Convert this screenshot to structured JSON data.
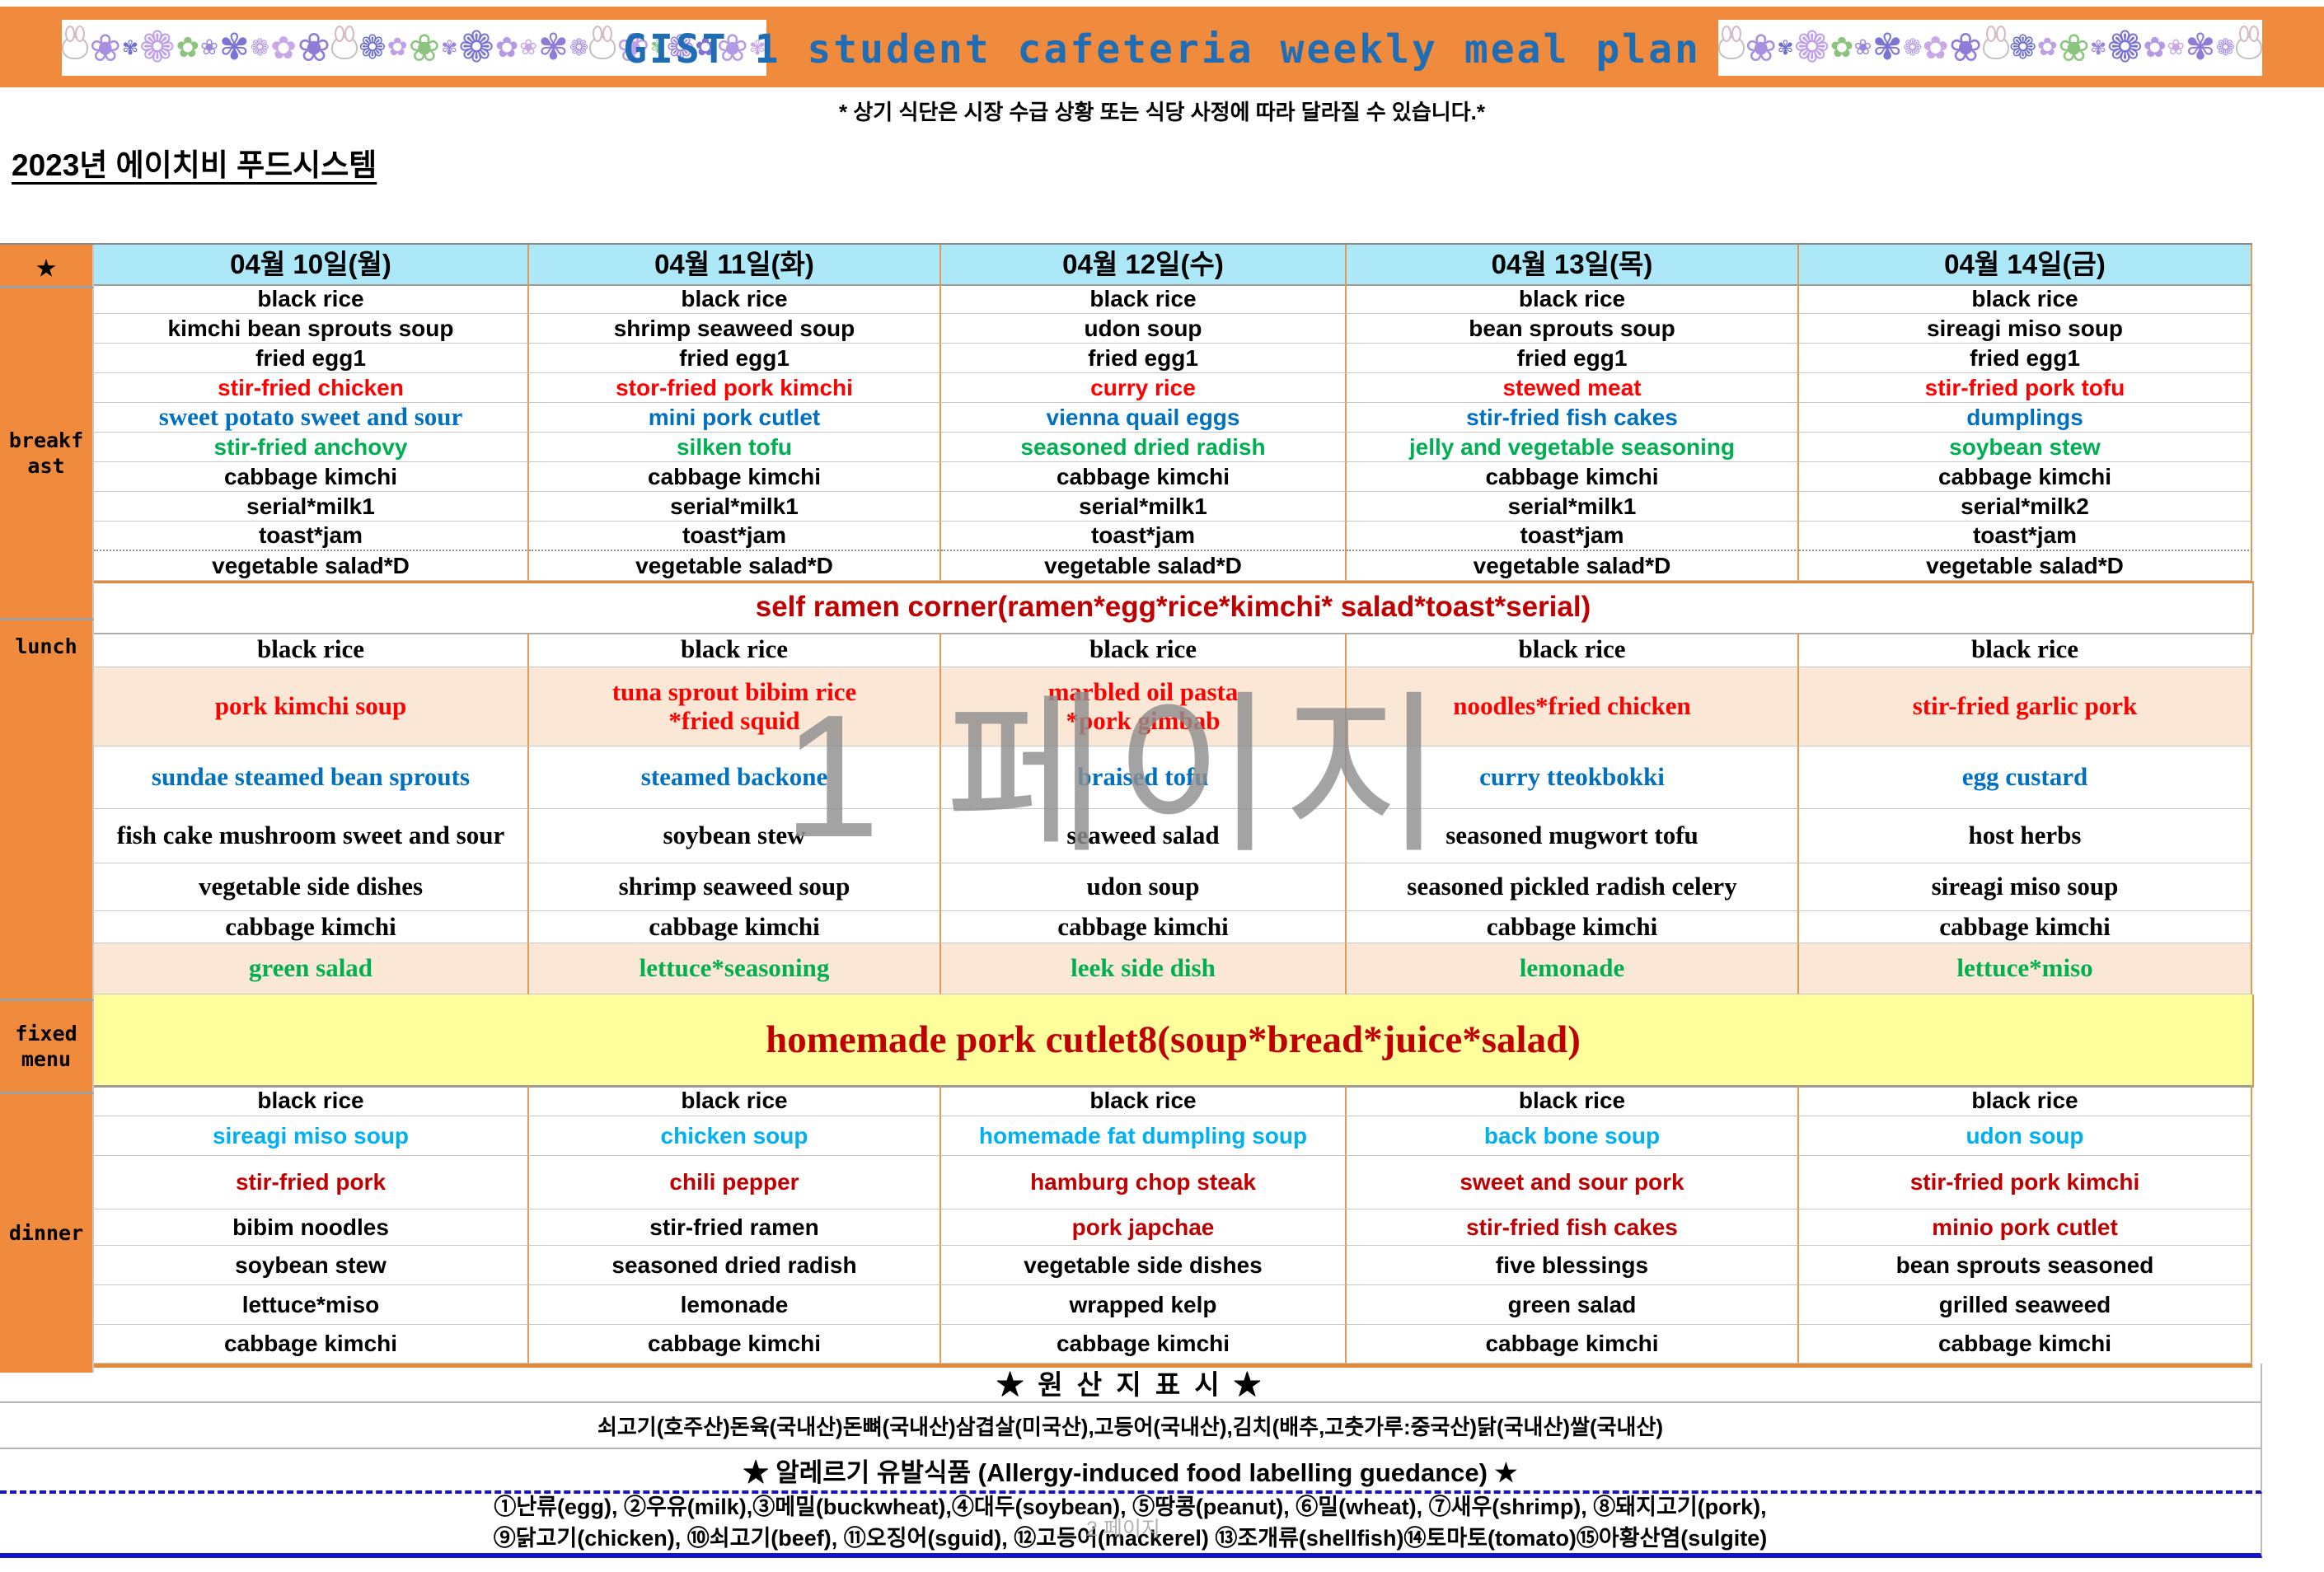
{
  "banner": {
    "title": "GIST 1 student cafeteria weekly meal plan",
    "title_color": "#1F6EB5",
    "bg_color": "#F08A3D",
    "left_decor_icon": "flower-strip",
    "right_decor_icon": "flower-strip",
    "bunny_icon": "bunny-face"
  },
  "notice": "* 상기 식단은 시장 수급 상황 또는 식당 사정에 따라 달라질 수 있습니다.*",
  "organization": "2023년 에이치비 푸드시스템",
  "watermarks": {
    "page_large": "1 페이지",
    "page_small": "2 페이지"
  },
  "palette": {
    "black": "#000000",
    "red": "#FF0000",
    "blue": "#0070C0",
    "green": "#00B050",
    "cyan": "#00B0F0",
    "darkred": "#C00000",
    "header_bg": "#ACE8F8",
    "sidebar_bg": "#F08A3D",
    "peach": "#FBE7D5",
    "yellow": "#FFFF9C",
    "footer_blue": "#1414CC"
  },
  "table": {
    "corner_star": "★",
    "days": [
      "04월 10일(월)",
      "04월 11일(화)",
      "04월 12일(수)",
      "04월 13일(목)",
      "04월 14일(금)"
    ],
    "sidebar": {
      "breakfast": "breakf\nast",
      "lunch": "lunch",
      "fixed": "fixed\nmenu",
      "dinner": "dinner"
    },
    "breakfast_rows": [
      {
        "color": "black",
        "cells": [
          "black rice",
          "black rice",
          "black rice",
          "black rice",
          "black rice"
        ]
      },
      {
        "color": "black",
        "cells": [
          "kimchi bean sprouts soup",
          "shrimp seaweed soup",
          "udon soup",
          "bean sprouts soup",
          "sireagi miso soup"
        ]
      },
      {
        "color": "black",
        "cells": [
          "fried egg1",
          "fried egg1",
          "fried egg1",
          "fried egg1",
          "fried egg1"
        ]
      },
      {
        "color": "red",
        "cells": [
          "stir-fried chicken",
          "stor-fried pork kimchi",
          "curry rice",
          "stewed meat",
          "stir-fried pork tofu"
        ]
      },
      {
        "color": "blue",
        "serif_cells": [
          0
        ],
        "cells": [
          "sweet potato sweet and sour",
          "mini pork cutlet",
          "vienna quail eggs",
          "stir-fried fish cakes",
          "dumplings"
        ]
      },
      {
        "color": "green",
        "cells": [
          "stir-fried anchovy",
          "silken tofu",
          "seasoned dried radish",
          "jelly and vegetable seasoning",
          "soybean stew"
        ]
      },
      {
        "color": "black",
        "cells": [
          "cabbage kimchi",
          "cabbage kimchi",
          "cabbage kimchi",
          "cabbage kimchi",
          "cabbage kimchi"
        ]
      },
      {
        "color": "black",
        "cells": [
          "serial*milk1",
          "serial*milk1",
          "serial*milk1",
          "serial*milk1",
          "serial*milk2"
        ]
      },
      {
        "color": "black",
        "dotted": true,
        "cells": [
          "toast*jam",
          "toast*jam",
          "toast*jam",
          "toast*jam",
          "toast*jam"
        ]
      },
      {
        "color": "black",
        "cells": [
          "vegetable salad*D",
          "vegetable salad*D",
          "vegetable salad*D",
          "vegetable salad*D",
          "vegetable salad*D"
        ]
      }
    ],
    "ramen_row": "self ramen corner(ramen*egg*rice*kimchi* salad*toast*serial)",
    "lunch_rows": [
      {
        "color": "black",
        "cells": [
          "black rice",
          "black rice",
          "black rice",
          "black rice",
          "black rice"
        ]
      },
      {
        "color": "red",
        "bg": "peach",
        "cells": [
          "pork kimchi soup",
          "tuna sprout bibim rice\n*fried squid",
          "marbled oil pasta\n*pork gimbab",
          "noodles*fried chicken",
          "stir-fried garlic pork"
        ]
      },
      {
        "color": "blue",
        "cells": [
          "sundae steamed bean sprouts",
          "steamed backone",
          "braised tofu",
          "curry tteokbokki",
          "egg custard"
        ]
      },
      {
        "color": "black",
        "cells": [
          "fish cake mushroom sweet and sour",
          "soybean stew",
          "seaweed salad",
          "seasoned mugwort tofu",
          "host herbs"
        ]
      },
      {
        "color": "black",
        "cells": [
          "vegetable side dishes",
          "shrimp seaweed soup",
          "udon soup",
          "seasoned pickled radish celery",
          "sireagi miso soup"
        ]
      },
      {
        "color": "black",
        "cells": [
          "cabbage kimchi",
          "cabbage kimchi",
          "cabbage kimchi",
          "cabbage kimchi",
          "cabbage kimchi"
        ]
      },
      {
        "color": "green",
        "bg": "peach",
        "cells": [
          "green salad",
          "lettuce*seasoning",
          "leek side dish",
          "lemonade",
          "lettuce*miso"
        ]
      }
    ],
    "fixed_menu": "homemade pork cutlet8(soup*bread*juice*salad)",
    "dinner_rows": [
      {
        "color": "black",
        "cells": [
          "black rice",
          "black rice",
          "black rice",
          "black rice",
          "black rice"
        ]
      },
      {
        "color": "cyan",
        "cells": [
          "sireagi miso soup",
          "chicken soup",
          "homemade fat dumpling soup",
          "back bone soup",
          "udon soup"
        ]
      },
      {
        "color": "darkred",
        "cells": [
          "stir-fried pork",
          "chili pepper",
          "hamburg chop steak",
          "sweet and sour pork",
          "stir-fried pork kimchi"
        ]
      },
      {
        "color": "black",
        "cell_colors": [
          "black",
          "black",
          "darkred",
          "darkred",
          "darkred"
        ],
        "cells": [
          "bibim noodles",
          "stir-fried ramen",
          "pork japchae",
          "stir-fried fish cakes",
          "minio pork cutlet"
        ]
      },
      {
        "color": "black",
        "cells": [
          "soybean stew",
          "seasoned dried radish",
          "vegetable side dishes",
          "five blessings",
          "bean sprouts seasoned"
        ]
      },
      {
        "color": "black",
        "cells": [
          "lettuce*miso",
          "lemonade",
          "wrapped kelp",
          "green salad",
          "grilled seaweed"
        ]
      },
      {
        "color": "black",
        "cells": [
          "cabbage kimchi",
          "cabbage kimchi",
          "cabbage kimchi",
          "cabbage kimchi",
          "cabbage kimchi"
        ]
      }
    ]
  },
  "footer": {
    "origin_title": "★ 원 산 지 표 시 ★",
    "origin_line": "쇠고기(호주산)돈육(국내산)돈뼈(국내산)삼겹살(미국산),고등어(국내산),김치(배추,고춧가루:중국산)닭(국내산)쌀(국내산)",
    "allergy_title": "★ 알레르기 유발식품 (Allergy-induced food labelling guedance) ★",
    "allergy_line1": "①난류(egg), ②우유(milk),③메밀(buckwheat),④대두(soybean), ⑤땅콩(peanut), ⑥밀(wheat), ⑦새우(shrimp), ⑧돼지고기(pork),",
    "allergy_line2": "⑨닭고기(chicken), ⑩쇠고기(beef), ⑪오징어(sguid), ⑫고등어(mackerel) ⑬조개류(shellfish)⑭토마토(tomato)⑮아황산염(sulgite)"
  }
}
